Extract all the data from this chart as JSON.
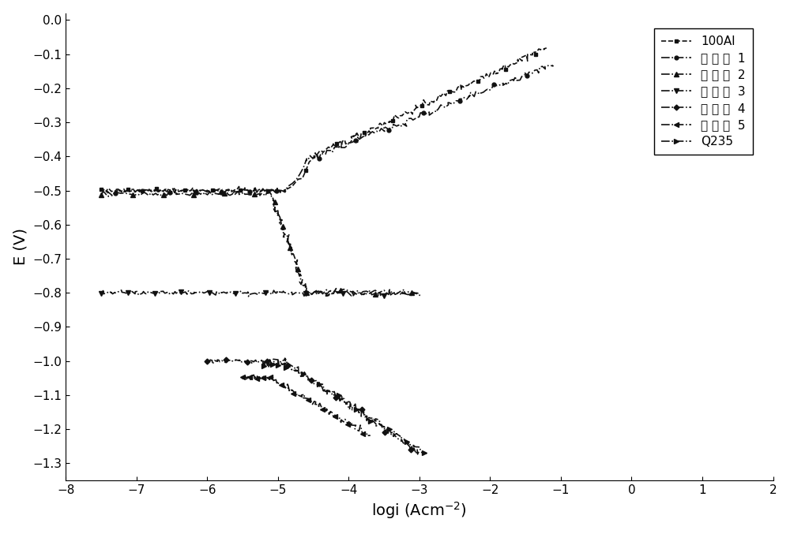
{
  "xlabel": "logi (Acm$^{-2}$)",
  "ylabel": "E (V)",
  "xlim": [
    -8,
    2
  ],
  "ylim": [
    -1.35,
    0.02
  ],
  "xticks": [
    -8,
    -7,
    -6,
    -5,
    -4,
    -3,
    -2,
    -1,
    0,
    1,
    2
  ],
  "yticks": [
    0.0,
    -0.1,
    -0.2,
    -0.3,
    -0.4,
    -0.5,
    -0.6,
    -0.7,
    -0.8,
    -0.9,
    -1.0,
    -1.1,
    -1.2,
    -1.3
  ],
  "background_color": "#ffffff",
  "line_color": "#111111",
  "legend_entries": [
    "100Al",
    "实 施 例  1",
    "实 施 例  2",
    "实 施 例  3",
    "实 施 例  4",
    "实 施 例  5",
    "Q235"
  ],
  "legend_markers": [
    "s",
    "o",
    "^",
    "v",
    "D",
    "<",
    ">"
  ],
  "legend_linestyles": [
    "--",
    "-.",
    "-.",
    "-.",
    "-.",
    "-.",
    "-."
  ],
  "figsize": [
    10.0,
    6.77
  ],
  "dpi": 100
}
